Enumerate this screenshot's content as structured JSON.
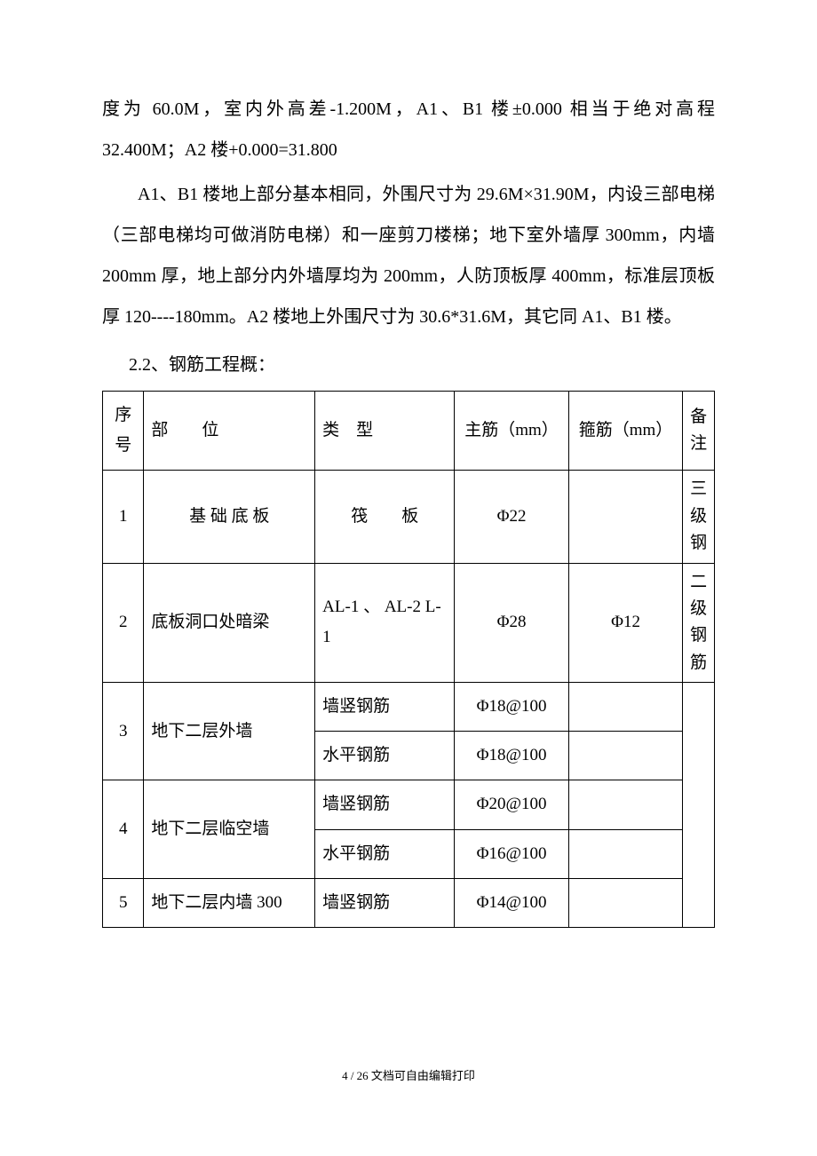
{
  "paragraphs": {
    "p1": "度为 60.0M，室内外高差-1.200M，A1、B1 楼±0.000 相当于绝对高程 32.400M；A2 楼+0.000=31.800",
    "p2": "A1、B1 楼地上部分基本相同，外围尺寸为 29.6M×31.90M，内设三部电梯（三部电梯均可做消防电梯）和一座剪刀楼梯；地下室外墙厚 300mm，内墙 200mm 厚，地上部分内外墙厚均为 200mm，人防顶板厚 400mm，标准层顶板厚 120----180mm。A2 楼地上外围尺寸为 30.6*31.6M，其它同 A1、B1 楼。",
    "heading": "2.2、钢筋工程概："
  },
  "table": {
    "headers": {
      "num": "序号",
      "part": "部　　位",
      "type": "类　型",
      "main": "主筋（mm）",
      "stirrup": "箍筋（mm）",
      "note": "备注"
    },
    "rows": {
      "r1": {
        "num": "1",
        "part": "基 础 底 板",
        "type": "筏　　板",
        "main": "Φ22",
        "stirrup": "",
        "note": "三级钢"
      },
      "r2": {
        "num": "2",
        "part": "底板洞口处暗梁",
        "type": "AL-1 、 AL-2 L-1",
        "main": "Φ28",
        "stirrup": "Φ12",
        "note": "二级钢筋"
      },
      "r3a": {
        "num": "3",
        "part": "地下二层外墙",
        "type": "墙竖钢筋",
        "main": "Φ18@100",
        "stirrup": "",
        "note": ""
      },
      "r3b": {
        "type": "水平钢筋",
        "main": "Φ18@100",
        "stirrup": ""
      },
      "r4a": {
        "num": "4",
        "part": "地下二层临空墙",
        "type": "墙竖钢筋",
        "main": "Φ20@100",
        "stirrup": "",
        "note": ""
      },
      "r4b": {
        "type": "水平钢筋",
        "main": "Φ16@100",
        "stirrup": ""
      },
      "r5": {
        "num": "5",
        "part": "地下二层内墙 300",
        "type": "墙竖钢筋",
        "main": "Φ14@100",
        "stirrup": "",
        "note": ""
      }
    }
  },
  "footer": "4 / 26 文档可自由编辑打印",
  "colors": {
    "text": "#000000",
    "background": "#ffffff",
    "border": "#000000"
  }
}
